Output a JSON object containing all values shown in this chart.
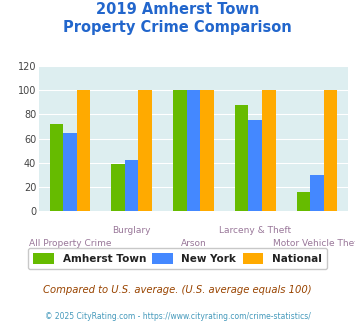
{
  "title_line1": "2019 Amherst Town",
  "title_line2": "Property Crime Comparison",
  "categories": [
    "All Property Crime",
    "Burglary",
    "Arson",
    "Larceny & Theft",
    "Motor Vehicle Theft"
  ],
  "x_labels_top": [
    "",
    "Burglary",
    "",
    "Larceny & Theft",
    ""
  ],
  "x_labels_bot": [
    "All Property Crime",
    "",
    "Arson",
    "",
    "Motor Vehicle Theft"
  ],
  "amherst": [
    72,
    39,
    100,
    88,
    16
  ],
  "newyork": [
    65,
    42,
    100,
    75,
    30
  ],
  "national": [
    100,
    100,
    100,
    100,
    100
  ],
  "color_amherst": "#66bb00",
  "color_newyork": "#4488ff",
  "color_national": "#ffaa00",
  "ylim": [
    0,
    120
  ],
  "yticks": [
    0,
    20,
    40,
    60,
    80,
    100,
    120
  ],
  "bg_color": "#ddeef0",
  "title_color": "#2266cc",
  "xlabel_color": "#997799",
  "legend_labels": [
    "Amherst Town",
    "New York",
    "National"
  ],
  "footnote1": "Compared to U.S. average. (U.S. average equals 100)",
  "footnote2": "© 2025 CityRating.com - https://www.cityrating.com/crime-statistics/",
  "footnote1_color": "#994400",
  "footnote2_color": "#4499bb"
}
